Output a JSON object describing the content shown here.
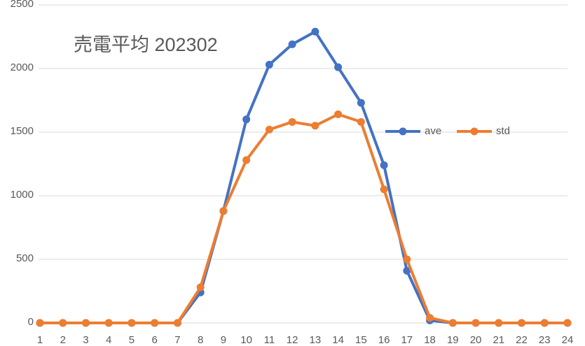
{
  "chart_data": {
    "type": "line",
    "title": "売電平均 202302",
    "categories": [
      "1",
      "2",
      "3",
      "4",
      "5",
      "6",
      "7",
      "8",
      "9",
      "10",
      "11",
      "12",
      "13",
      "14",
      "15",
      "16",
      "17",
      "18",
      "19",
      "20",
      "21",
      "22",
      "23",
      "24"
    ],
    "series": [
      {
        "name": "ave",
        "color": "#4472c4",
        "values": [
          0,
          0,
          0,
          0,
          0,
          0,
          0,
          240,
          880,
          1600,
          2030,
          2190,
          2290,
          2010,
          1730,
          1240,
          410,
          20,
          0,
          0,
          0,
          0,
          0,
          0
        ]
      },
      {
        "name": "std",
        "color": "#ed7d31",
        "values": [
          0,
          0,
          0,
          0,
          0,
          0,
          0,
          280,
          880,
          1280,
          1520,
          1580,
          1550,
          1640,
          1580,
          1050,
          500,
          40,
          0,
          0,
          0,
          0,
          0,
          0
        ]
      }
    ],
    "ylim": [
      0,
      2500
    ],
    "yticks": [
      0,
      500,
      1000,
      1500,
      2000,
      2500
    ],
    "grid": true,
    "legend": "right"
  }
}
